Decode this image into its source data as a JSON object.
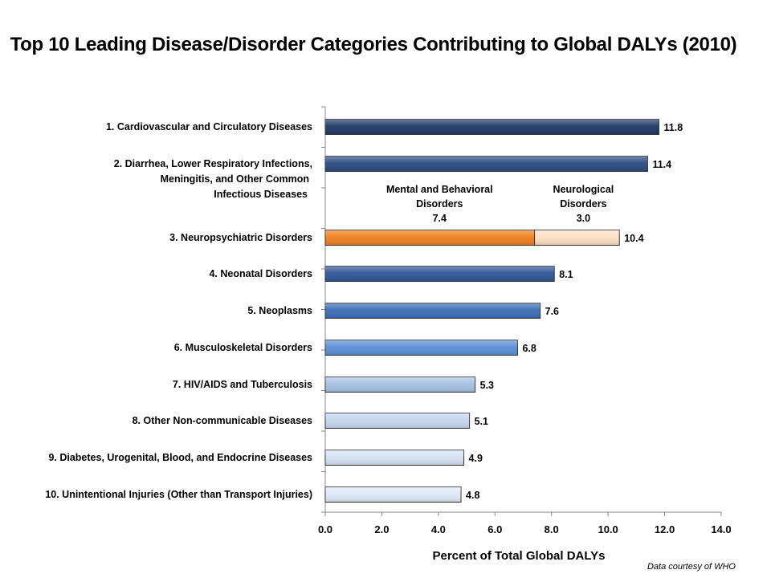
{
  "chart_data": {
    "type": "bar",
    "orientation": "horizontal",
    "title": "Top 10 Leading Disease/Disorder Categories Contributing to Global DALYs (2010)",
    "xlabel": "Percent of Total Global DALYs",
    "ylabel": "",
    "xlim": [
      0,
      14
    ],
    "x_ticks": [
      "0.0",
      "2.0",
      "4.0",
      "6.0",
      "8.0",
      "10.0",
      "12.0",
      "14.0"
    ],
    "grid": false,
    "legend": "none",
    "categories": [
      [
        "1.  Cardiovascular and Circulatory Diseases"
      ],
      [
        "2.  Diarrhea, Lower Respiratory Infections,",
        "Meningitis, and Other Common",
        "Infectious Diseases"
      ],
      [
        "3.  Neuropsychiatric Disorders"
      ],
      [
        "4.  Neonatal Disorders"
      ],
      [
        "5.  Neoplasms"
      ],
      [
        "6.  Musculoskeletal Disorders"
      ],
      [
        "7.  HIV/AIDS and Tuberculosis"
      ],
      [
        "8.  Other Non-communicable Diseases"
      ],
      [
        "9.  Diabetes, Urogenital, Blood, and Endocrine Diseases"
      ],
      [
        "10.  Unintentional Injuries (Other than Transport Injuries)"
      ]
    ],
    "values": [
      11.8,
      11.4,
      10.4,
      8.1,
      7.6,
      6.8,
      5.3,
      5.1,
      4.9,
      4.8
    ],
    "value_labels": [
      "11.8",
      "11.4",
      "10.4",
      "8.1",
      "7.6",
      "6.8",
      "5.3",
      "5.1",
      "4.9",
      "4.8"
    ],
    "bar_colors": [
      "#1f3864",
      "#2a4a80",
      null,
      "#2e5597",
      "#3a6cb5",
      "#5b8fd6",
      "#a7c1e4",
      "#c5d6ee",
      "#d5e2f3",
      "#dfe9f6"
    ],
    "stacked_bar": {
      "index": 2,
      "segments": [
        {
          "name_lines": [
            "Mental and Behavioral",
            "Disorders",
            "7.4"
          ],
          "value": 7.4,
          "color": "#f07f1e"
        },
        {
          "name_lines": [
            "Neurological",
            "Disorders",
            "3.0"
          ],
          "value": 3.0,
          "color": "#fde0c4"
        }
      ]
    }
  },
  "footer": {
    "credit": "Data courtesy  of WHO"
  }
}
